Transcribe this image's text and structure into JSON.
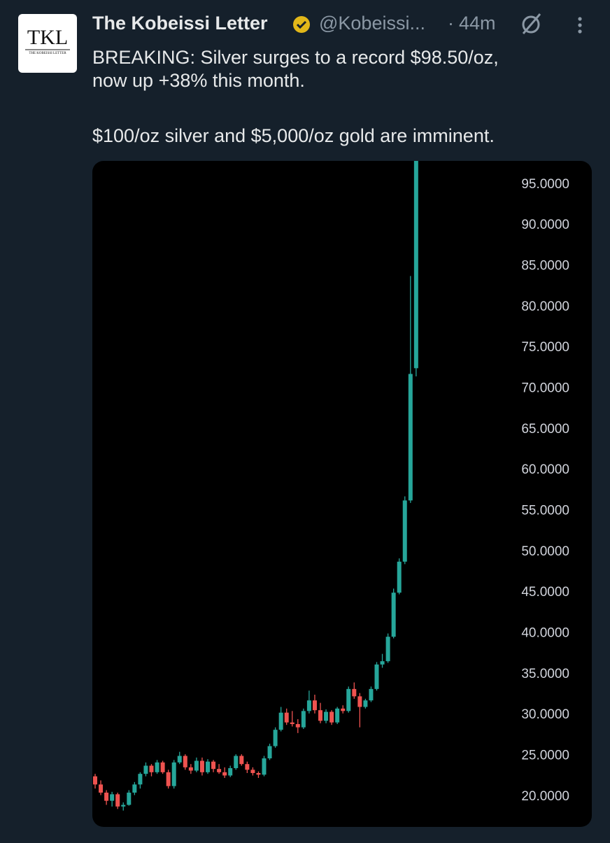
{
  "author": {
    "avatar_text": "TKL",
    "avatar_subtext": "THE KOBEISSI LETTER",
    "name": "The Kobeissi Letter",
    "handle": "@Kobeissi...",
    "separator": "·",
    "time": "44m"
  },
  "tweet": {
    "lines": [
      "BREAKING: Silver surges to a record $98.50/oz,",
      "now up +38% this month.",
      "$100/oz silver and $5,000/oz gold are imminent."
    ]
  },
  "chart_data": {
    "type": "candlestick",
    "up_color": "#26a69a",
    "down_color": "#ef5350",
    "open": [
      22.5,
      21.5,
      20.5,
      19.5,
      20.3,
      18.8,
      19.0,
      20.5,
      21.5,
      22.8,
      23.8,
      23.0,
      24.2,
      23.0,
      21.3,
      24.2,
      25.0,
      23.6,
      23.2,
      24.4,
      23.0,
      24.3,
      23.4,
      23.0,
      22.6,
      23.5,
      25.0,
      24.0,
      23.3,
      22.9,
      22.7,
      24.7,
      26.2,
      28.2,
      30.3,
      29.1,
      28.9,
      28.5,
      30.5,
      31.8,
      30.6,
      29.3,
      30.4,
      29.1,
      30.8,
      30.5,
      33.2,
      32.3,
      31.0,
      31.8,
      33.2,
      36.2,
      36.6,
      39.6,
      45.0,
      48.8,
      56.3,
      72.5
    ],
    "high": [
      22.8,
      22.0,
      20.8,
      20.6,
      20.5,
      19.3,
      20.8,
      21.8,
      23.0,
      24.2,
      24.0,
      24.5,
      24.4,
      23.3,
      24.5,
      25.5,
      25.2,
      24.0,
      24.8,
      24.8,
      24.6,
      24.5,
      24.0,
      23.6,
      23.8,
      25.2,
      25.2,
      24.3,
      23.6,
      23.1,
      25.0,
      26.5,
      28.5,
      31.0,
      30.8,
      30.5,
      29.5,
      30.8,
      33.0,
      32.5,
      31.5,
      30.7,
      30.6,
      31.0,
      31.2,
      33.5,
      34.0,
      32.7,
      32.0,
      33.5,
      36.5,
      37.5,
      40.0,
      45.5,
      49.2,
      56.8,
      83.8,
      98.5
    ],
    "low": [
      21.0,
      20.2,
      19.0,
      18.8,
      18.5,
      18.3,
      18.9,
      20.2,
      21.0,
      22.5,
      22.5,
      22.8,
      22.8,
      21.0,
      21.0,
      24.0,
      23.3,
      22.8,
      23.0,
      22.6,
      22.8,
      23.0,
      22.8,
      22.3,
      22.4,
      23.3,
      23.8,
      22.9,
      22.6,
      22.3,
      22.5,
      24.5,
      26.0,
      28.0,
      28.8,
      28.6,
      27.8,
      28.3,
      30.2,
      30.2,
      29.0,
      29.0,
      28.8,
      28.9,
      30.2,
      30.3,
      32.0,
      28.5,
      30.8,
      31.6,
      33.0,
      35.8,
      36.4,
      39.4,
      44.8,
      48.5,
      56.0,
      71.5
    ],
    "close": [
      21.5,
      20.5,
      19.5,
      20.3,
      18.8,
      19.0,
      20.5,
      21.5,
      22.8,
      23.8,
      23.0,
      24.2,
      23.0,
      21.3,
      24.2,
      25.0,
      23.6,
      23.2,
      24.4,
      23.0,
      24.3,
      23.4,
      23.0,
      22.6,
      23.5,
      25.0,
      24.0,
      23.3,
      22.9,
      22.7,
      24.7,
      26.2,
      28.2,
      30.3,
      29.1,
      28.9,
      28.5,
      30.5,
      31.8,
      30.6,
      29.3,
      30.4,
      29.1,
      30.8,
      30.5,
      33.2,
      32.3,
      31.0,
      31.8,
      33.2,
      36.2,
      36.6,
      39.6,
      45.0,
      48.8,
      56.3,
      71.8,
      98.5
    ],
    "ylim": [
      16.3,
      97.9
    ],
    "yticks": [
      {
        "value": 20,
        "label": "20.0000"
      },
      {
        "value": 25,
        "label": "25.0000"
      },
      {
        "value": 30,
        "label": "30.0000"
      },
      {
        "value": 35,
        "label": "35.0000"
      },
      {
        "value": 40,
        "label": "40.0000"
      },
      {
        "value": 45,
        "label": "45.0000"
      },
      {
        "value": 50,
        "label": "50.0000"
      },
      {
        "value": 55,
        "label": "55.0000"
      },
      {
        "value": 60,
        "label": "60.0000"
      },
      {
        "value": 65,
        "label": "65.0000"
      },
      {
        "value": 70,
        "label": "70.0000"
      },
      {
        "value": 75,
        "label": "75.0000"
      },
      {
        "value": 80,
        "label": "80.0000"
      },
      {
        "value": 85,
        "label": "85.0000"
      },
      {
        "value": 90,
        "label": "90.0000"
      },
      {
        "value": 95,
        "label": "95.0000"
      }
    ]
  }
}
